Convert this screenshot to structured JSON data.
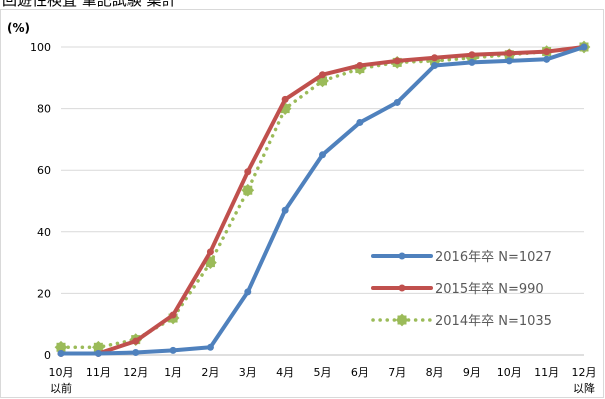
{
  "page": {
    "title": "回遊性検査 筆記試験 集計"
  },
  "chart_data": {
    "type": "line",
    "unit_label": "(%)",
    "categories": [
      [
        "10月",
        "以前"
      ],
      [
        "11月"
      ],
      [
        "12月"
      ],
      [
        "1月"
      ],
      [
        "2月"
      ],
      [
        "3月"
      ],
      [
        "4月"
      ],
      [
        "5月"
      ],
      [
        "6月"
      ],
      [
        "7月"
      ],
      [
        "8月"
      ],
      [
        "9月"
      ],
      [
        "10月"
      ],
      [
        "11月"
      ],
      [
        "12月",
        "以降"
      ]
    ],
    "ylim": [
      0,
      100
    ],
    "yticks": [
      0,
      20,
      40,
      60,
      80,
      100
    ],
    "grid": "horizontal",
    "legend_position": "center-right",
    "series": [
      {
        "name": "2016年卒 N=1027",
        "color": "#4f81bd",
        "style": "solid",
        "values": [
          0.5,
          0.5,
          0.8,
          1.5,
          2.5,
          20.5,
          47,
          65,
          75.5,
          82,
          94,
          95,
          95.5,
          96,
          100
        ]
      },
      {
        "name": "2015年卒 N=990",
        "color": "#c0504d",
        "style": "solid",
        "values": [
          0.5,
          0.5,
          4.5,
          13,
          33.5,
          59.5,
          83,
          91,
          94,
          95.5,
          96.5,
          97.5,
          98,
          98.5,
          100
        ]
      },
      {
        "name": "2014年卒 N=1035",
        "color": "#9bbb59",
        "style": "dotted",
        "values": [
          2.5,
          2.5,
          5,
          12,
          30,
          53.5,
          80,
          89,
          93,
          95,
          95.5,
          96.5,
          97.5,
          98.5,
          100
        ]
      }
    ]
  }
}
